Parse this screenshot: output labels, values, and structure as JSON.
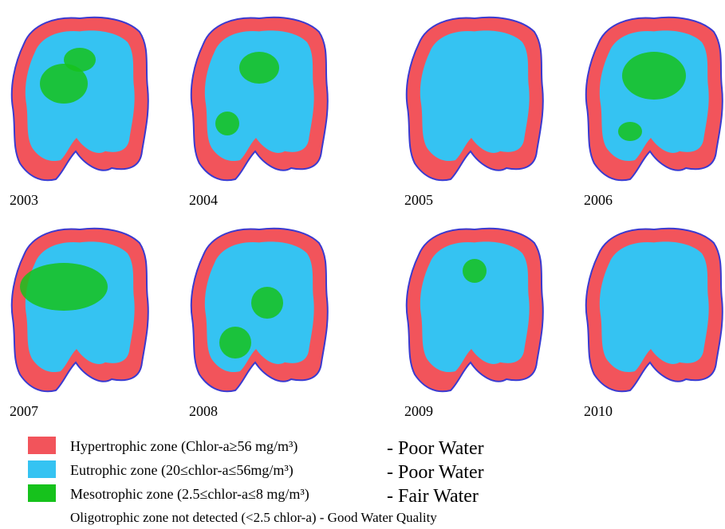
{
  "panels": [
    {
      "year": "2003"
    },
    {
      "year": "2004"
    },
    {
      "year": "2005"
    },
    {
      "year": "2006"
    },
    {
      "year": "2007"
    },
    {
      "year": "2008"
    },
    {
      "year": "2009"
    },
    {
      "year": "2010"
    }
  ],
  "legend": [
    {
      "label": "Hypertrophic zone (Chlor-a≥56 mg/m³)",
      "quality": "- Poor Water",
      "color": "#f2545b"
    },
    {
      "label": "Eutrophic zone (20≤chlor-a≤56mg/m³)",
      "quality": "- Poor Water",
      "color": "#35c3f2"
    },
    {
      "label": "Mesotrophic zone (2.5≤chlor-a≤8 mg/m³)",
      "quality": "- Fair Water",
      "color": "#16c21c"
    }
  ],
  "note": "Oligotrophic zone not detected (<2.5 chlor-a) - Good Water Quality"
}
